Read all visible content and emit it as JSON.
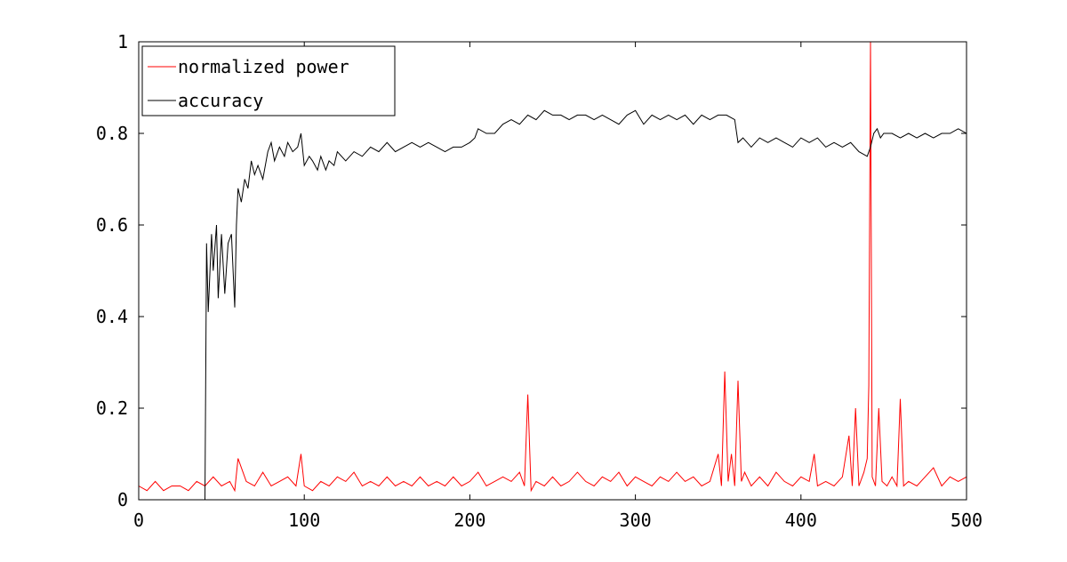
{
  "chart_data": {
    "type": "line",
    "title": "",
    "xlabel": "",
    "ylabel": "",
    "xlim": [
      0,
      500
    ],
    "ylim": [
      0,
      1
    ],
    "grid": false,
    "legend_position": "top-left",
    "x_ticks": [
      "0",
      "100",
      "200",
      "300",
      "400",
      "500"
    ],
    "y_ticks": [
      "0",
      "0.2",
      "0.4",
      "0.6",
      "0.8",
      "1"
    ],
    "series": [
      {
        "name": "normalized power",
        "color": "#ff0000",
        "x": [
          0,
          5,
          10,
          15,
          20,
          25,
          30,
          35,
          40,
          45,
          50,
          55,
          58,
          60,
          65,
          70,
          75,
          80,
          85,
          90,
          95,
          98,
          100,
          105,
          110,
          115,
          120,
          125,
          130,
          135,
          140,
          145,
          150,
          155,
          160,
          165,
          170,
          175,
          180,
          185,
          190,
          195,
          200,
          205,
          210,
          215,
          220,
          225,
          230,
          233,
          235,
          237,
          240,
          245,
          250,
          255,
          260,
          265,
          270,
          275,
          280,
          285,
          290,
          295,
          300,
          305,
          310,
          315,
          320,
          325,
          330,
          335,
          340,
          345,
          350,
          352,
          354,
          356,
          358,
          360,
          362,
          364,
          366,
          370,
          375,
          380,
          385,
          390,
          395,
          400,
          405,
          408,
          410,
          415,
          420,
          425,
          429,
          431,
          433,
          435,
          438,
          440,
          441,
          442,
          443,
          445,
          447,
          449,
          452,
          455,
          458,
          460,
          462,
          465,
          470,
          475,
          480,
          485,
          490,
          495,
          500
        ],
        "values": [
          0.03,
          0.02,
          0.04,
          0.02,
          0.03,
          0.03,
          0.02,
          0.04,
          0.03,
          0.05,
          0.03,
          0.04,
          0.02,
          0.09,
          0.04,
          0.03,
          0.06,
          0.03,
          0.04,
          0.05,
          0.03,
          0.1,
          0.03,
          0.02,
          0.04,
          0.03,
          0.05,
          0.04,
          0.06,
          0.03,
          0.04,
          0.03,
          0.05,
          0.03,
          0.04,
          0.03,
          0.05,
          0.03,
          0.04,
          0.03,
          0.05,
          0.03,
          0.04,
          0.06,
          0.03,
          0.04,
          0.05,
          0.04,
          0.06,
          0.03,
          0.23,
          0.02,
          0.04,
          0.03,
          0.05,
          0.03,
          0.04,
          0.06,
          0.04,
          0.03,
          0.05,
          0.04,
          0.06,
          0.03,
          0.05,
          0.04,
          0.03,
          0.05,
          0.04,
          0.06,
          0.04,
          0.05,
          0.03,
          0.04,
          0.1,
          0.03,
          0.28,
          0.04,
          0.1,
          0.03,
          0.26,
          0.04,
          0.06,
          0.03,
          0.05,
          0.03,
          0.06,
          0.04,
          0.03,
          0.05,
          0.04,
          0.1,
          0.03,
          0.04,
          0.03,
          0.05,
          0.14,
          0.03,
          0.2,
          0.03,
          0.06,
          0.09,
          0.25,
          1.0,
          0.05,
          0.03,
          0.2,
          0.04,
          0.03,
          0.05,
          0.03,
          0.22,
          0.03,
          0.04,
          0.03,
          0.05,
          0.07,
          0.03,
          0.05,
          0.04,
          0.05
        ]
      },
      {
        "name": "accuracy",
        "color": "#000000",
        "x": [
          0,
          40,
          41,
          42,
          44,
          45,
          47,
          48,
          50,
          52,
          54,
          56,
          58,
          59,
          60,
          62,
          64,
          66,
          68,
          70,
          72,
          75,
          78,
          80,
          82,
          85,
          88,
          90,
          93,
          96,
          98,
          100,
          103,
          105,
          108,
          110,
          113,
          115,
          118,
          120,
          125,
          130,
          135,
          140,
          145,
          150,
          155,
          160,
          165,
          170,
          175,
          180,
          185,
          190,
          195,
          200,
          203,
          205,
          210,
          215,
          220,
          225,
          230,
          235,
          240,
          245,
          250,
          255,
          260,
          265,
          270,
          275,
          280,
          285,
          290,
          295,
          300,
          305,
          310,
          315,
          320,
          325,
          330,
          335,
          340,
          345,
          350,
          355,
          360,
          362,
          365,
          370,
          375,
          380,
          385,
          390,
          395,
          400,
          405,
          410,
          415,
          420,
          425,
          430,
          435,
          440,
          442,
          444,
          446,
          448,
          450,
          455,
          460,
          465,
          470,
          475,
          480,
          485,
          490,
          495,
          500
        ],
        "values": [
          0,
          0,
          0.56,
          0.41,
          0.58,
          0.5,
          0.6,
          0.44,
          0.58,
          0.45,
          0.56,
          0.58,
          0.42,
          0.6,
          0.68,
          0.65,
          0.7,
          0.68,
          0.74,
          0.71,
          0.73,
          0.7,
          0.76,
          0.78,
          0.74,
          0.77,
          0.75,
          0.78,
          0.76,
          0.77,
          0.8,
          0.73,
          0.75,
          0.74,
          0.72,
          0.75,
          0.72,
          0.74,
          0.73,
          0.76,
          0.74,
          0.76,
          0.75,
          0.77,
          0.76,
          0.78,
          0.76,
          0.77,
          0.78,
          0.77,
          0.78,
          0.77,
          0.76,
          0.77,
          0.77,
          0.78,
          0.79,
          0.81,
          0.8,
          0.8,
          0.82,
          0.83,
          0.82,
          0.84,
          0.83,
          0.85,
          0.84,
          0.84,
          0.83,
          0.84,
          0.84,
          0.83,
          0.84,
          0.83,
          0.82,
          0.84,
          0.85,
          0.82,
          0.84,
          0.83,
          0.84,
          0.83,
          0.84,
          0.82,
          0.84,
          0.83,
          0.84,
          0.84,
          0.83,
          0.78,
          0.79,
          0.77,
          0.79,
          0.78,
          0.79,
          0.78,
          0.77,
          0.79,
          0.78,
          0.79,
          0.77,
          0.78,
          0.77,
          0.78,
          0.76,
          0.75,
          0.77,
          0.8,
          0.81,
          0.79,
          0.8,
          0.8,
          0.79,
          0.8,
          0.79,
          0.8,
          0.79,
          0.8,
          0.8,
          0.81,
          0.8
        ]
      }
    ]
  }
}
